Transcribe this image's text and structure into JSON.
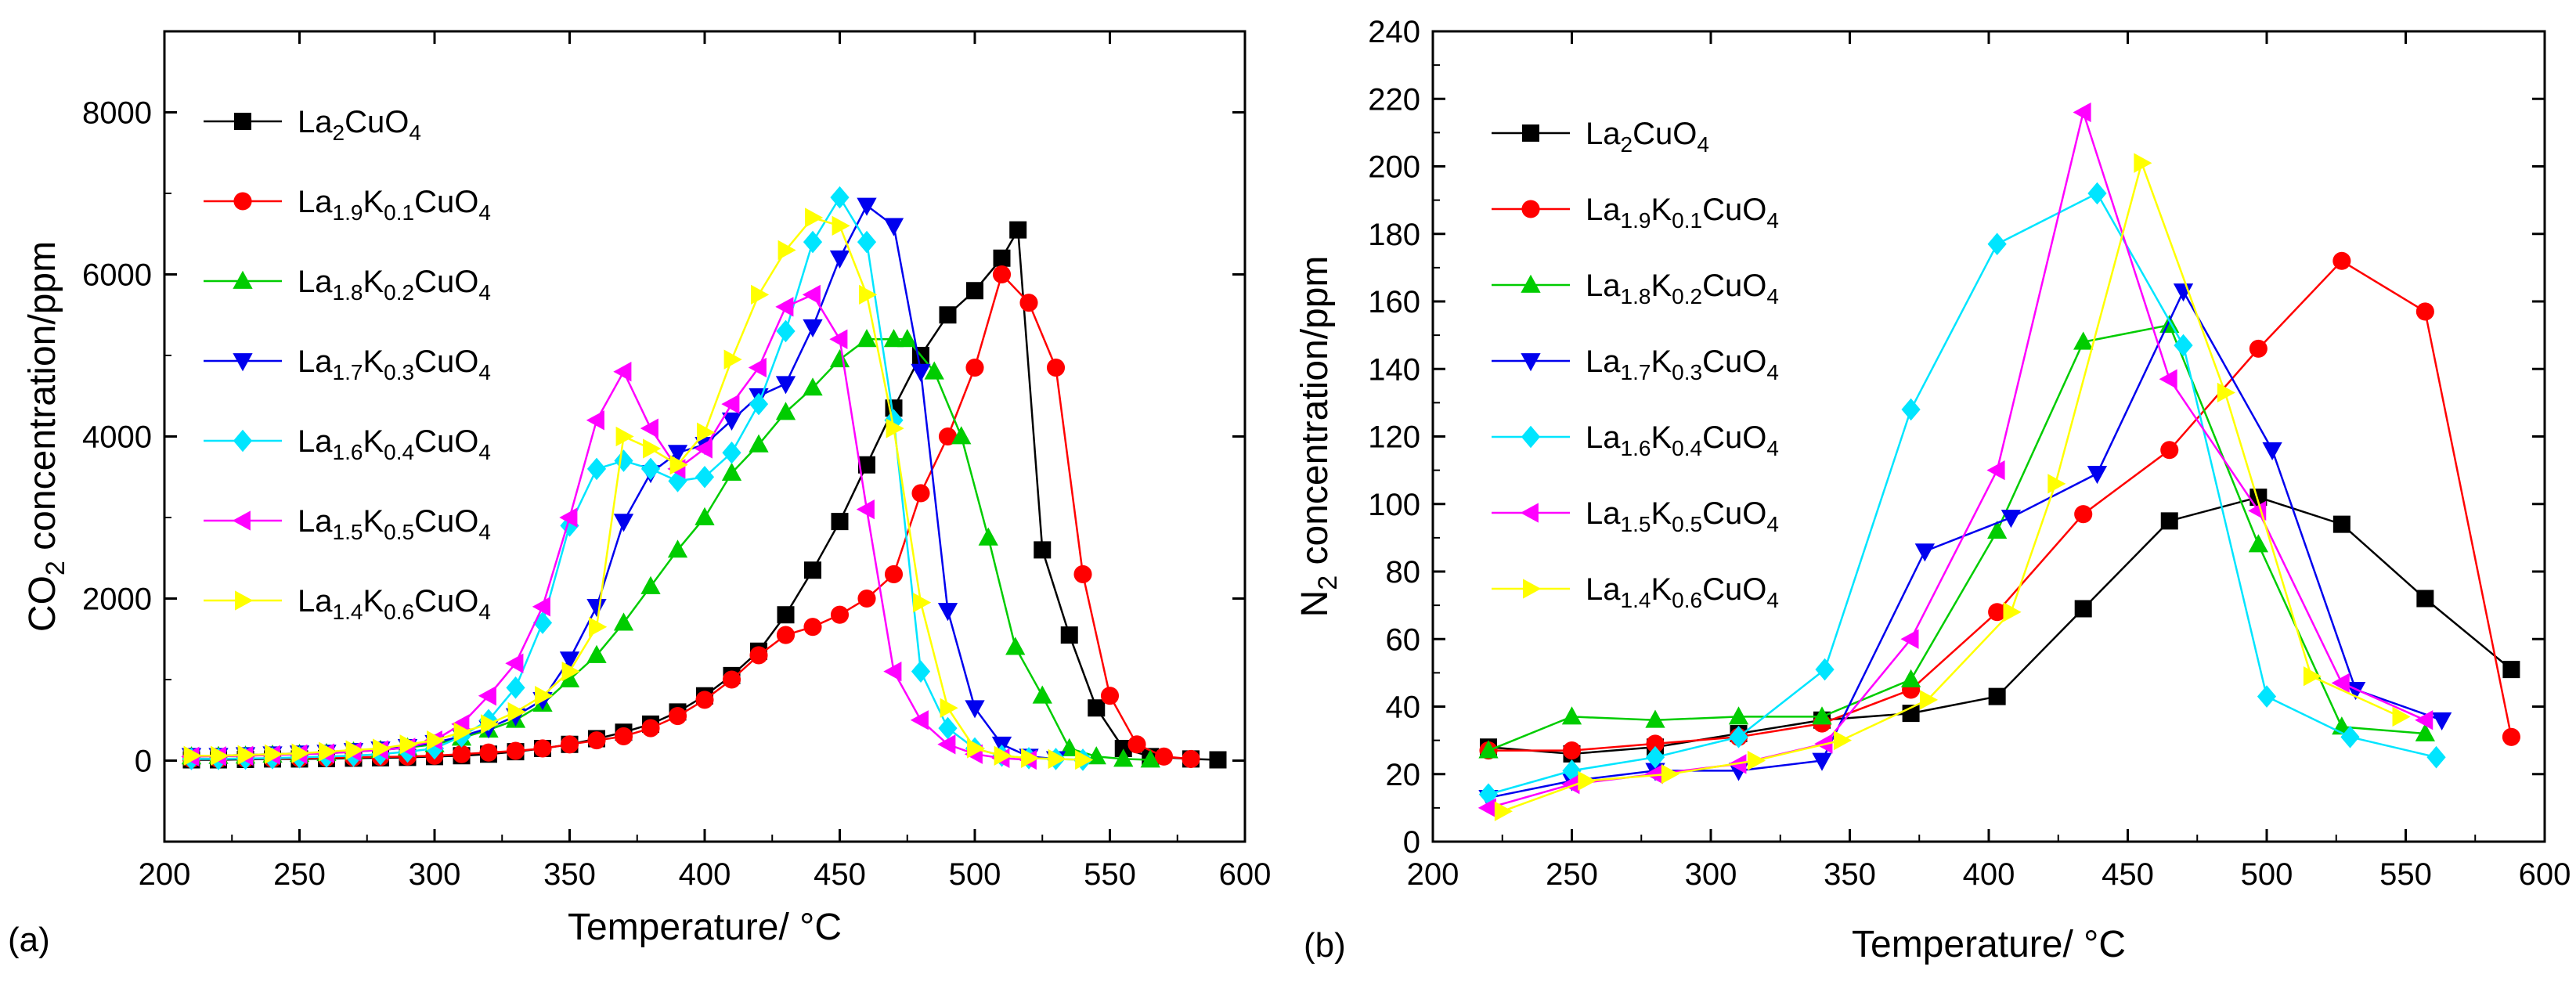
{
  "figure": {
    "panel_a_label": "(a)",
    "panel_b_label": "(b)"
  },
  "colors": {
    "La2CuO4": "#000000",
    "La1.9K0.1CuO4": "#ff0000",
    "La1.8K0.2CuO4": "#00cc00",
    "La1.7K0.3CuO4": "#0000ee",
    "La1.6K0.4CuO4": "#00e5ff",
    "La1.5K0.5CuO4": "#ff00ff",
    "La1.4K0.6CuO4": "#ffff00"
  },
  "chart_data": [
    {
      "type": "line",
      "panel": "(a)",
      "title": "",
      "xlabel": "Temperature/ °C",
      "ylabel": "CO2 concentration/ppm",
      "ylabel_parts": [
        "CO",
        "2",
        " concentration/ppm"
      ],
      "xlim": [
        200,
        600
      ],
      "ylim": [
        -1000,
        9000
      ],
      "xticks": [
        200,
        250,
        300,
        350,
        400,
        450,
        500,
        550,
        600
      ],
      "yticks": [
        0,
        2000,
        4000,
        6000,
        8000
      ],
      "legend_position": "top-left",
      "series": [
        {
          "name": "La2CuO4",
          "label_parts": [
            "La",
            "2",
            "CuO",
            "4"
          ],
          "marker": "square",
          "color": "#000000",
          "x": [
            210,
            220,
            230,
            240,
            250,
            260,
            270,
            280,
            290,
            300,
            310,
            320,
            330,
            340,
            350,
            360,
            370,
            380,
            390,
            400,
            410,
            420,
            430,
            440,
            450,
            460,
            470,
            480,
            490,
            500,
            510,
            516,
            525,
            535,
            545,
            555,
            565,
            580,
            590
          ],
          "y": [
            10,
            10,
            15,
            20,
            20,
            25,
            30,
            35,
            40,
            50,
            60,
            80,
            110,
            150,
            200,
            270,
            350,
            450,
            600,
            800,
            1050,
            1350,
            1800,
            2350,
            2950,
            3650,
            4350,
            5000,
            5500,
            5800,
            6200,
            6550,
            2600,
            1550,
            650,
            150,
            50,
            20,
            10
          ]
        },
        {
          "name": "La1.9K0.1CuO4",
          "label_parts": [
            "La",
            "1.9",
            "K",
            "0.1",
            "CuO",
            "4"
          ],
          "marker": "circle",
          "color": "#ff0000",
          "x": [
            210,
            220,
            230,
            240,
            250,
            260,
            270,
            280,
            290,
            300,
            310,
            320,
            330,
            340,
            350,
            360,
            370,
            380,
            390,
            400,
            410,
            420,
            430,
            440,
            450,
            460,
            470,
            480,
            490,
            500,
            510,
            520,
            530,
            540,
            550,
            560,
            570,
            580
          ],
          "y": [
            20,
            20,
            25,
            25,
            30,
            35,
            40,
            45,
            50,
            60,
            80,
            100,
            120,
            150,
            200,
            250,
            300,
            400,
            550,
            750,
            1000,
            1300,
            1550,
            1650,
            1800,
            2000,
            2300,
            3300,
            4000,
            4850,
            6000,
            5650,
            4850,
            2300,
            800,
            200,
            50,
            20
          ]
        },
        {
          "name": "La1.8K0.2CuO4",
          "label_parts": [
            "La",
            "1.8",
            "K",
            "0.2",
            "CuO",
            "4"
          ],
          "marker": "triangle-up",
          "color": "#00cc00",
          "x": [
            210,
            220,
            230,
            240,
            250,
            260,
            270,
            280,
            290,
            300,
            310,
            320,
            330,
            340,
            350,
            360,
            370,
            380,
            390,
            400,
            410,
            420,
            430,
            440,
            450,
            460,
            470,
            475,
            485,
            495,
            505,
            515,
            525,
            535,
            545,
            555,
            565
          ],
          "y": [
            50,
            55,
            60,
            70,
            80,
            90,
            110,
            130,
            160,
            200,
            280,
            380,
            500,
            700,
            1000,
            1300,
            1700,
            2150,
            2600,
            3000,
            3550,
            3900,
            4300,
            4600,
            4950,
            5200,
            5200,
            5200,
            4800,
            4000,
            2750,
            1400,
            800,
            150,
            50,
            20,
            10
          ]
        },
        {
          "name": "La1.7K0.3CuO4",
          "label_parts": [
            "La",
            "1.7",
            "K",
            "0.3",
            "CuO",
            "4"
          ],
          "marker": "triangle-down",
          "color": "#0000ee",
          "x": [
            210,
            220,
            230,
            240,
            250,
            260,
            270,
            280,
            290,
            300,
            310,
            320,
            330,
            340,
            350,
            360,
            370,
            380,
            390,
            400,
            410,
            420,
            430,
            440,
            450,
            460,
            470,
            480,
            490,
            500,
            510,
            520,
            530
          ],
          "y": [
            60,
            60,
            70,
            80,
            90,
            100,
            120,
            140,
            170,
            220,
            300,
            400,
            550,
            750,
            1250,
            1900,
            2950,
            3550,
            3800,
            3900,
            4200,
            4500,
            4650,
            5350,
            6200,
            6850,
            6600,
            4800,
            1850,
            650,
            200,
            50,
            20
          ]
        },
        {
          "name": "La1.6K0.4CuO4",
          "label_parts": [
            "La",
            "1.6",
            "K",
            "0.4",
            "CuO",
            "4"
          ],
          "marker": "diamond",
          "color": "#00e5ff",
          "x": [
            210,
            220,
            230,
            240,
            250,
            260,
            270,
            280,
            290,
            300,
            310,
            320,
            330,
            340,
            350,
            360,
            370,
            380,
            390,
            400,
            410,
            420,
            430,
            440,
            450,
            460,
            470,
            480,
            490,
            500,
            510,
            520,
            530,
            540
          ],
          "y": [
            20,
            20,
            25,
            30,
            40,
            50,
            60,
            80,
            110,
            150,
            300,
            500,
            900,
            1700,
            2900,
            3600,
            3700,
            3600,
            3450,
            3500,
            3800,
            4400,
            5300,
            6400,
            6950,
            6400,
            4200,
            1100,
            400,
            150,
            60,
            30,
            20,
            10
          ]
        },
        {
          "name": "La1.5K0.5CuO4",
          "label_parts": [
            "La",
            "1.5",
            "K",
            "0.5",
            "CuO",
            "4"
          ],
          "marker": "triangle-left",
          "color": "#ff00ff",
          "x": [
            210,
            220,
            230,
            240,
            250,
            260,
            270,
            280,
            290,
            300,
            310,
            320,
            330,
            340,
            350,
            360,
            370,
            380,
            390,
            400,
            410,
            420,
            430,
            440,
            450,
            460,
            470,
            480,
            490,
            500,
            510,
            520
          ],
          "y": [
            50,
            55,
            60,
            70,
            80,
            90,
            110,
            130,
            160,
            250,
            450,
            800,
            1200,
            1900,
            3000,
            4200,
            4800,
            4100,
            3600,
            3850,
            4400,
            4850,
            5600,
            5750,
            5200,
            3100,
            1100,
            500,
            200,
            80,
            30,
            10
          ]
        },
        {
          "name": "La1.4K0.6CuO4",
          "label_parts": [
            "La",
            "1.4",
            "K",
            "0.6",
            "CuO",
            "4"
          ],
          "marker": "triangle-right",
          "color": "#ffff00",
          "x": [
            210,
            220,
            230,
            240,
            250,
            260,
            270,
            280,
            290,
            300,
            310,
            320,
            330,
            340,
            350,
            360,
            370,
            380,
            390,
            400,
            410,
            420,
            430,
            440,
            450,
            460,
            470,
            480,
            490,
            500,
            510,
            520,
            530,
            540
          ],
          "y": [
            60,
            60,
            70,
            80,
            90,
            110,
            130,
            150,
            200,
            250,
            350,
            450,
            600,
            800,
            1100,
            1650,
            4000,
            3850,
            3650,
            4050,
            4950,
            5750,
            6300,
            6700,
            6600,
            5750,
            4100,
            1950,
            650,
            150,
            60,
            30,
            20,
            10
          ]
        }
      ]
    },
    {
      "type": "line",
      "panel": "(b)",
      "title": "",
      "xlabel": "Temperature/ °C",
      "ylabel": "N2 concentration/ppm",
      "ylabel_parts": [
        "N",
        "2",
        " concentration/ppm"
      ],
      "xlim": [
        200,
        600
      ],
      "ylim": [
        0,
        240
      ],
      "xticks": [
        200,
        250,
        300,
        350,
        400,
        450,
        500,
        550,
        600
      ],
      "yticks": [
        0,
        20,
        40,
        60,
        80,
        100,
        120,
        140,
        160,
        180,
        200,
        220,
        240
      ],
      "legend_position": "top-left",
      "series": [
        {
          "name": "La2CuO4",
          "label_parts": [
            "La",
            "2",
            "CuO",
            "4"
          ],
          "marker": "square",
          "color": "#000000",
          "x": [
            220,
            250,
            280,
            310,
            340,
            372,
            403,
            434,
            465,
            497,
            527,
            557,
            588
          ],
          "y": [
            28,
            26,
            28,
            32,
            36,
            38,
            43,
            69,
            95,
            102,
            94,
            72,
            51
          ]
        },
        {
          "name": "La1.9K0.1CuO4",
          "label_parts": [
            "La",
            "1.9",
            "K",
            "0.1",
            "CuO",
            "4"
          ],
          "marker": "circle",
          "color": "#ff0000",
          "x": [
            220,
            250,
            280,
            310,
            340,
            372,
            403,
            434,
            465,
            497,
            527,
            557,
            588
          ],
          "y": [
            27,
            27,
            29,
            31,
            35,
            45,
            68,
            97,
            116,
            146,
            172,
            157,
            31
          ]
        },
        {
          "name": "La1.8K0.2CuO4",
          "label_parts": [
            "La",
            "1.8",
            "K",
            "0.2",
            "CuO",
            "4"
          ],
          "marker": "triangle-up",
          "color": "#00cc00",
          "x": [
            220,
            250,
            280,
            310,
            340,
            372,
            403,
            434,
            465,
            497,
            527,
            557
          ],
          "y": [
            27,
            37,
            36,
            37,
            37,
            48,
            92,
            148,
            153,
            88,
            34,
            32
          ]
        },
        {
          "name": "La1.7K0.3CuO4",
          "label_parts": [
            "La",
            "1.7",
            "K",
            "0.3",
            "CuO",
            "4"
          ],
          "marker": "triangle-down",
          "color": "#0000ee",
          "x": [
            220,
            250,
            280,
            310,
            340,
            377,
            408,
            439,
            470,
            502,
            532,
            563
          ],
          "y": [
            13,
            18,
            21,
            21,
            24,
            86,
            96,
            109,
            163,
            116,
            45,
            36
          ]
        },
        {
          "name": "La1.6K0.4CuO4",
          "label_parts": [
            "La",
            "1.6",
            "K",
            "0.4",
            "CuO",
            "4"
          ],
          "marker": "diamond",
          "color": "#00e5ff",
          "x": [
            220,
            250,
            280,
            310,
            341,
            372,
            403,
            439,
            470,
            500,
            530,
            561
          ],
          "y": [
            14,
            21,
            25,
            31,
            51,
            128,
            177,
            192,
            147,
            43,
            31,
            25
          ]
        },
        {
          "name": "La1.5K0.5CuO4",
          "label_parts": [
            "La",
            "1.5",
            "K",
            "0.5",
            "CuO",
            "4"
          ],
          "marker": "triangle-left",
          "color": "#ff00ff",
          "x": [
            220,
            250,
            280,
            310,
            341,
            372,
            403,
            434,
            465,
            497,
            527,
            557
          ],
          "y": [
            10,
            17,
            20,
            23,
            29,
            60,
            110,
            216,
            137,
            98,
            47,
            36
          ]
        },
        {
          "name": "La1.4K0.6CuO4",
          "label_parts": [
            "La",
            "1.4",
            "K",
            "0.6",
            "CuO",
            "4"
          ],
          "marker": "triangle-right",
          "color": "#ffff00",
          "x": [
            225,
            255,
            285,
            316,
            347,
            378,
            408,
            424,
            455,
            485,
            516,
            548
          ],
          "y": [
            9,
            18,
            20,
            24,
            30,
            42,
            68,
            106,
            201,
            133,
            49,
            37
          ]
        }
      ]
    }
  ]
}
